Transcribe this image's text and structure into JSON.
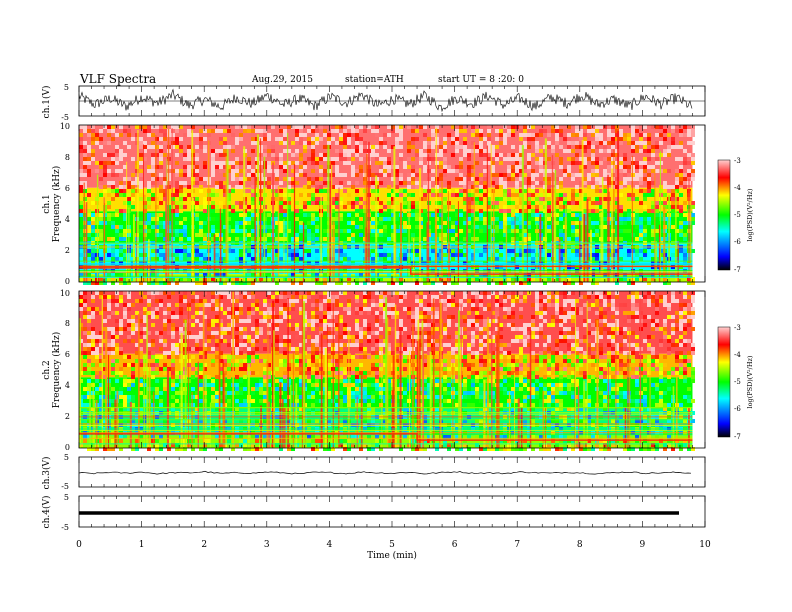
{
  "header": {
    "title": "VLF Spectra",
    "date": "Aug.29, 2015",
    "station": "station=ATH",
    "start": "start  UT =  8 :20: 0"
  },
  "chart_data": [
    {
      "id": "ch1-waveform",
      "type": "line",
      "ylabel": "ch.1(V)",
      "ylim": [
        -5,
        5
      ],
      "yticks": [
        "5",
        "-5"
      ],
      "xlim": [
        0,
        10
      ],
      "grid": false,
      "series": [
        {
          "color": "#000000",
          "x_range": [
            0,
            9.8
          ],
          "values": [
            1.6,
            -1.2,
            0.9,
            -1.8,
            1.4,
            -0.7,
            2.1,
            -1.5,
            0.6,
            -2.0,
            1.2,
            -0.9,
            1.9,
            -1.3,
            0.8,
            -1.7,
            1.5,
            -0.6,
            2.2,
            -1.6,
            0.7,
            -1.1,
            1.8,
            -2.1,
            1.0,
            -0.8,
            1.7,
            -1.4,
            0.9,
            -1.9,
            1.3,
            -0.7,
            2.0,
            -1.2,
            0.6,
            -1.8,
            1.6,
            -1.0,
            1.1,
            -2.2
          ]
        }
      ]
    },
    {
      "id": "ch1-spectrogram",
      "type": "heatmap",
      "ylabel": "ch.1\nFrequency (kHz)",
      "ylim": [
        0,
        10
      ],
      "yticks": [
        "0",
        "2",
        "4",
        "6",
        "8",
        "10"
      ],
      "xlim": [
        0,
        10
      ],
      "data_x_range": [
        0,
        9.8
      ],
      "colorbar": {
        "label": "log(PSD)(V²/Hz)",
        "range": [
          -7,
          -3
        ],
        "ticks": [
          "-3",
          "-4",
          "-5",
          "-6",
          "-7"
        ]
      },
      "bands_khz": [
        {
          "from": 6,
          "to": 10,
          "log_psd": -3.3
        },
        {
          "from": 4.5,
          "to": 6,
          "log_psd": -4.2
        },
        {
          "from": 2.5,
          "to": 4.5,
          "log_psd": -5.0
        },
        {
          "from": 0.5,
          "to": 2.5,
          "log_psd": -5.6
        },
        {
          "from": 0,
          "to": 0.5,
          "log_psd": -4.5
        }
      ],
      "transition_min": 5.3
    },
    {
      "id": "ch2-spectrogram",
      "type": "heatmap",
      "ylabel": "ch.2\nFrequency (kHz)",
      "ylim": [
        0,
        10
      ],
      "yticks": [
        "0",
        "2",
        "4",
        "6",
        "8",
        "10"
      ],
      "xlim": [
        0,
        10
      ],
      "data_x_range": [
        0,
        9.8
      ],
      "colorbar": {
        "label": "log(PSD)(V²/Hz)",
        "range": [
          -7,
          -3
        ],
        "ticks": [
          "-3",
          "-4",
          "-5",
          "-6",
          "-7"
        ]
      },
      "bands_khz": [
        {
          "from": 6,
          "to": 10,
          "log_psd": -3.4
        },
        {
          "from": 4.5,
          "to": 6,
          "log_psd": -4.1
        },
        {
          "from": 2.5,
          "to": 4.5,
          "log_psd": -5.0
        },
        {
          "from": 0.8,
          "to": 2.5,
          "log_psd": -5.3
        },
        {
          "from": 0,
          "to": 0.8,
          "log_psd": -4.6
        }
      ],
      "transition_min": 5.4
    },
    {
      "id": "ch3-waveform",
      "type": "line",
      "ylabel": "ch.3(V)",
      "ylim": [
        -5,
        5
      ],
      "yticks": [
        "5",
        "-5"
      ],
      "xlim": [
        0,
        10
      ],
      "grid": false,
      "series": [
        {
          "color": "#000000",
          "x_range": [
            0,
            9.8
          ],
          "values": [
            -0.3,
            -0.5,
            -0.1,
            -0.4,
            0.0,
            -0.6,
            -0.2,
            -0.3,
            0.1,
            -0.5,
            -0.2,
            -0.4,
            0.0,
            -0.3,
            -0.6,
            -0.1,
            -0.2,
            -0.5,
            0.0,
            -0.3,
            -0.4,
            -0.1,
            -0.6,
            -0.2,
            0.1,
            -0.4,
            -0.3,
            -0.5,
            0.0,
            -0.2,
            -0.4,
            -0.1,
            -0.3,
            -0.6,
            -0.2,
            0.0,
            -0.4,
            -0.3,
            -0.1,
            -0.4
          ]
        }
      ]
    },
    {
      "id": "ch4-waveform",
      "type": "line",
      "ylabel": "ch.4(V)",
      "ylim": [
        -5,
        5
      ],
      "yticks": [
        "5",
        "-5"
      ],
      "xlim": [
        0,
        10
      ],
      "xlabel": "Time (min)",
      "xticks": [
        "0",
        "1",
        "2",
        "3",
        "4",
        "5",
        "6",
        "7",
        "8",
        "9",
        "10"
      ],
      "grid": false,
      "series": [
        {
          "color": "#000000",
          "x_range": [
            0,
            9.8
          ],
          "values": [
            -0.5,
            -0.5,
            -0.5,
            -0.5,
            -0.5,
            -0.5,
            -0.5,
            -0.5,
            -0.5,
            -0.5
          ]
        }
      ]
    }
  ],
  "colors": {
    "colormap": [
      "#000000",
      "#0000ff",
      "#00ffff",
      "#00ff00",
      "#ffff00",
      "#ff0000",
      "#ffd0d0"
    ]
  }
}
